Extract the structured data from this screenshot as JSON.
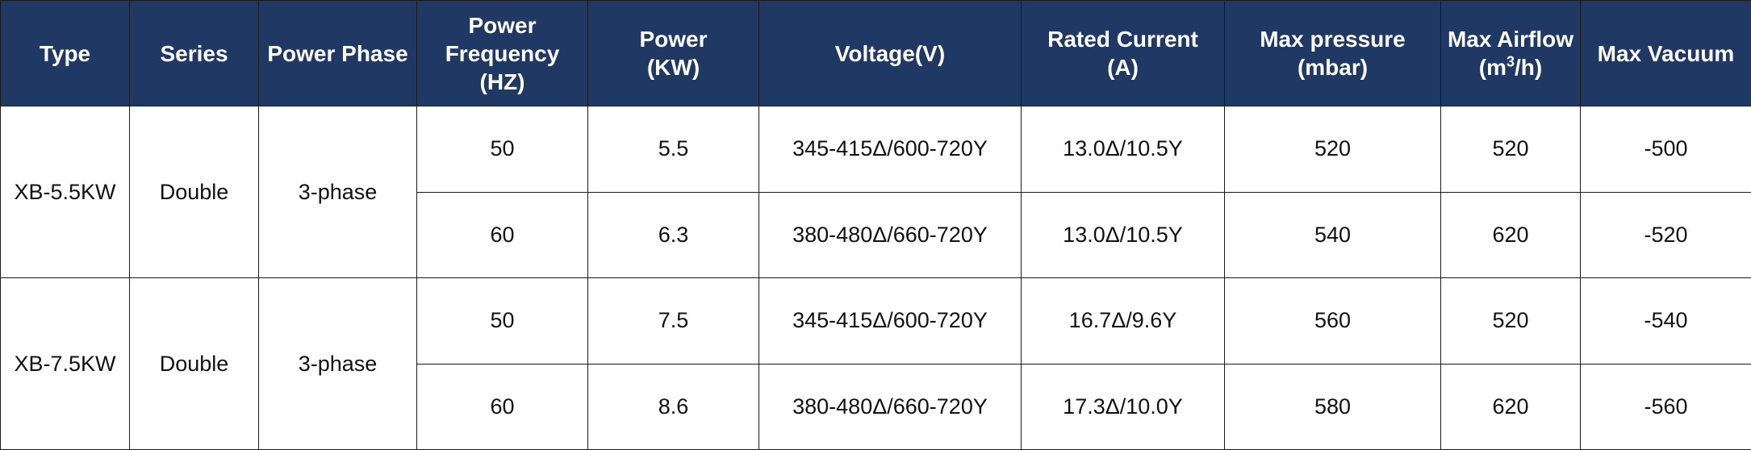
{
  "headers": {
    "type": "Type",
    "series": "Series",
    "power_phase": "Power Phase",
    "power_frequency_1": "Power",
    "power_frequency_2": "Frequency",
    "power_frequency_3": "(HZ)",
    "power_1": "Power",
    "power_2": "(KW)",
    "voltage": "Voltage(V)",
    "rated_current_1": "Rated Current",
    "rated_current_2": "(A)",
    "max_pressure_1": "Max pressure",
    "max_pressure_2": "(mbar)",
    "max_airflow_1": "Max Airflow",
    "max_airflow_2_pre": "(m",
    "max_airflow_2_sup": "3",
    "max_airflow_2_post": "/h)",
    "max_vacuum": "Max Vacuum"
  },
  "groups": [
    {
      "type": "XB-5.5KW",
      "series": "Double",
      "phase": "3-phase",
      "rows": [
        {
          "freq": "50",
          "power": "5.5",
          "voltage": "345-415Δ/600-720Y",
          "current": "13.0Δ/10.5Y",
          "pressure": "520",
          "airflow": "520",
          "vacuum": "-500"
        },
        {
          "freq": "60",
          "power": "6.3",
          "voltage": "380-480Δ/660-720Y",
          "current": "13.0Δ/10.5Y",
          "pressure": "540",
          "airflow": "620",
          "vacuum": "-520"
        }
      ]
    },
    {
      "type": "XB-7.5KW",
      "series": "Double",
      "phase": "3-phase",
      "rows": [
        {
          "freq": "50",
          "power": "7.5",
          "voltage": "345-415Δ/600-720Y",
          "current": "16.7Δ/9.6Y",
          "pressure": "560",
          "airflow": "520",
          "vacuum": "-540"
        },
        {
          "freq": "60",
          "power": "8.6",
          "voltage": "380-480Δ/660-720Y",
          "current": "17.3Δ/10.0Y",
          "pressure": "580",
          "airflow": "620",
          "vacuum": "-560"
        }
      ]
    }
  ],
  "colors": {
    "header_bg": "#1f3864",
    "header_text": "#ffffff",
    "border": "#1a1a1a"
  }
}
